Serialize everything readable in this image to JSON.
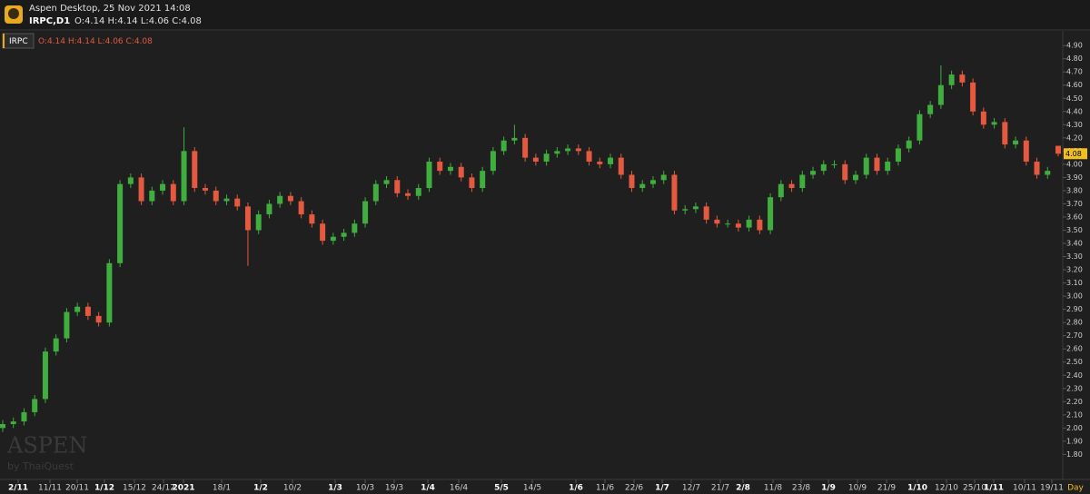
{
  "header": {
    "title": "Aspen Desktop, 25 Nov 2021 14:08",
    "symbol": "IRPC,D1",
    "ohlc": "O:4.14 H:4.14 L:4.06 C:4.08",
    "legend_symbol": "IRPC",
    "watermark": "ASPEN",
    "watermark_sub": "by ThaiQuest"
  },
  "chart_data": {
    "type": "candlestick",
    "up_color": "#3fae3f",
    "down_color": "#e4593f",
    "x_labels": [
      "2/11",
      "11/11",
      "20/11",
      "1/12",
      "15/12",
      "24/12",
      "2021",
      "18/1",
      "1/2",
      "10/2",
      "1/3",
      "10/3",
      "19/3",
      "1/4",
      "16/4",
      "5/5",
      "14/5",
      "1/6",
      "11/6",
      "22/6",
      "1/7",
      "12/7",
      "21/7",
      "2/8",
      "11/8",
      "23/8",
      "1/9",
      "10/9",
      "21/9",
      "1/10",
      "12/10",
      "25/10",
      "1/11",
      "10/11",
      "19/11"
    ],
    "period": "Day",
    "ylim": [
      1.61,
      4.97
    ],
    "yticks": [
      {
        "value": 1.8,
        "label": "1.80"
      },
      {
        "value": 1.9,
        "label": "1.90"
      },
      {
        "value": 2.0,
        "label": "2.00"
      },
      {
        "value": 2.1,
        "label": "2.10"
      },
      {
        "value": 2.2,
        "label": "2.20"
      },
      {
        "value": 2.3,
        "label": "2.30"
      },
      {
        "value": 2.4,
        "label": "2.40"
      },
      {
        "value": 2.5,
        "label": "2.50"
      },
      {
        "value": 2.6,
        "label": "2.60"
      },
      {
        "value": 2.7,
        "label": "2.70"
      },
      {
        "value": 2.8,
        "label": "2.80"
      },
      {
        "value": 2.9,
        "label": "2.90"
      },
      {
        "value": 3.0,
        "label": "3.00"
      },
      {
        "value": 3.1,
        "label": "3.10"
      },
      {
        "value": 3.2,
        "label": "3.20"
      },
      {
        "value": 3.3,
        "label": "3.30"
      },
      {
        "value": 3.4,
        "label": "3.40"
      },
      {
        "value": 3.5,
        "label": "3.50"
      },
      {
        "value": 3.6,
        "label": "3.60"
      },
      {
        "value": 3.7,
        "label": "3.70"
      },
      {
        "value": 3.8,
        "label": "3.80"
      },
      {
        "value": 3.9,
        "label": "3.90"
      },
      {
        "value": 4.0,
        "label": "4.00"
      },
      {
        "value": 4.1,
        "label": "4.10"
      },
      {
        "value": 4.2,
        "label": "4.20"
      },
      {
        "value": 4.3,
        "label": "4.30"
      },
      {
        "value": 4.4,
        "label": "4.40"
      },
      {
        "value": 4.5,
        "label": "4.50"
      },
      {
        "value": 4.6,
        "label": "4.60"
      },
      {
        "value": 4.7,
        "label": "4.70"
      },
      {
        "value": 4.8,
        "label": "4.80"
      },
      {
        "value": 4.9,
        "label": "4.90"
      }
    ],
    "open": [
      2.0,
      2.03,
      2.05,
      2.12,
      2.22,
      2.58,
      2.68,
      2.88,
      2.92,
      2.85,
      2.8,
      3.25,
      3.85,
      3.9,
      3.72,
      3.8,
      3.85,
      3.72,
      4.1,
      3.82,
      3.8,
      3.72,
      3.74,
      3.68,
      3.5,
      3.62,
      3.7,
      3.76,
      3.72,
      3.62,
      3.55,
      3.42,
      3.45,
      3.48,
      3.55,
      3.72,
      3.85,
      3.88,
      3.78,
      3.76,
      3.82,
      4.02,
      3.95,
      3.98,
      3.9,
      3.82,
      3.95,
      4.1,
      4.18,
      4.2,
      4.05,
      4.02,
      4.08,
      4.1,
      4.12,
      4.1,
      4.02,
      4.0,
      4.05,
      3.92,
      3.82,
      3.85,
      3.88,
      3.92,
      3.65,
      3.66,
      3.68,
      3.58,
      3.55,
      3.55,
      3.52,
      3.58,
      3.5,
      3.75,
      3.85,
      3.82,
      3.92,
      3.95,
      4.0,
      4.0,
      3.88,
      3.92,
      4.05,
      3.95,
      4.02,
      4.12,
      4.18,
      4.38,
      4.45,
      4.6,
      4.68,
      4.62,
      4.4,
      4.3,
      4.32,
      4.15,
      4.18,
      4.02,
      3.92,
      4.14
    ],
    "high": [
      2.06,
      2.08,
      2.15,
      2.25,
      2.61,
      2.71,
      2.91,
      2.95,
      2.95,
      2.88,
      3.28,
      3.88,
      3.93,
      3.93,
      3.83,
      3.88,
      3.88,
      4.28,
      4.13,
      3.85,
      3.83,
      3.77,
      3.77,
      3.71,
      3.65,
      3.73,
      3.79,
      3.79,
      3.75,
      3.65,
      3.58,
      3.48,
      3.51,
      3.58,
      3.75,
      3.88,
      3.91,
      3.91,
      3.81,
      3.85,
      4.05,
      4.05,
      4.01,
      4.01,
      3.93,
      3.98,
      4.13,
      4.21,
      4.3,
      4.23,
      4.08,
      4.11,
      4.13,
      4.15,
      4.15,
      4.13,
      4.05,
      4.08,
      4.08,
      3.95,
      3.88,
      3.91,
      3.95,
      3.95,
      3.69,
      3.71,
      3.71,
      3.61,
      3.58,
      3.58,
      3.61,
      3.61,
      3.78,
      3.88,
      3.88,
      3.95,
      3.98,
      4.03,
      4.03,
      4.03,
      3.95,
      4.08,
      4.08,
      4.05,
      4.15,
      4.21,
      4.41,
      4.48,
      4.75,
      4.71,
      4.71,
      4.65,
      4.43,
      4.35,
      4.35,
      4.21,
      4.21,
      4.05,
      3.98,
      4.14
    ],
    "low": [
      1.97,
      2.0,
      2.02,
      2.09,
      2.19,
      2.55,
      2.65,
      2.85,
      2.82,
      2.77,
      2.77,
      3.22,
      3.82,
      3.69,
      3.69,
      3.77,
      3.69,
      3.69,
      3.79,
      3.77,
      3.69,
      3.69,
      3.65,
      3.23,
      3.47,
      3.59,
      3.67,
      3.69,
      3.59,
      3.52,
      3.39,
      3.39,
      3.42,
      3.45,
      3.52,
      3.69,
      3.82,
      3.75,
      3.73,
      3.73,
      3.79,
      3.92,
      3.92,
      3.87,
      3.79,
      3.79,
      3.92,
      4.07,
      4.15,
      4.02,
      3.99,
      3.99,
      4.05,
      4.07,
      4.07,
      3.99,
      3.97,
      3.97,
      3.89,
      3.79,
      3.79,
      3.82,
      3.85,
      3.62,
      3.62,
      3.63,
      3.55,
      3.52,
      3.52,
      3.49,
      3.49,
      3.47,
      3.47,
      3.72,
      3.79,
      3.79,
      3.89,
      3.92,
      3.97,
      3.85,
      3.85,
      3.89,
      3.92,
      3.92,
      3.99,
      4.09,
      4.15,
      4.35,
      4.42,
      4.57,
      4.59,
      4.37,
      4.27,
      4.27,
      4.12,
      4.12,
      3.99,
      3.89,
      3.89,
      4.06
    ],
    "close": [
      2.03,
      2.05,
      2.12,
      2.22,
      2.58,
      2.68,
      2.88,
      2.92,
      2.85,
      2.8,
      3.25,
      3.85,
      3.9,
      3.72,
      3.8,
      3.85,
      3.72,
      4.1,
      3.82,
      3.8,
      3.72,
      3.74,
      3.68,
      3.5,
      3.62,
      3.7,
      3.76,
      3.72,
      3.62,
      3.55,
      3.42,
      3.45,
      3.48,
      3.55,
      3.72,
      3.85,
      3.88,
      3.78,
      3.76,
      3.82,
      4.02,
      3.95,
      3.98,
      3.9,
      3.82,
      3.95,
      4.1,
      4.18,
      4.2,
      4.05,
      4.02,
      4.08,
      4.1,
      4.12,
      4.1,
      4.02,
      4.0,
      4.05,
      3.92,
      3.82,
      3.85,
      3.88,
      3.92,
      3.65,
      3.66,
      3.68,
      3.58,
      3.55,
      3.55,
      3.52,
      3.58,
      3.5,
      3.75,
      3.85,
      3.82,
      3.92,
      3.95,
      4.0,
      4.0,
      3.88,
      3.92,
      4.05,
      3.95,
      4.02,
      4.12,
      4.18,
      4.38,
      4.45,
      4.6,
      4.68,
      4.62,
      4.4,
      4.3,
      4.32,
      4.15,
      4.18,
      4.02,
      3.92,
      3.95,
      4.08
    ]
  }
}
